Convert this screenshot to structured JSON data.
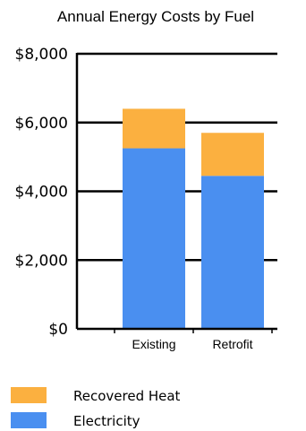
{
  "chart_data": {
    "type": "bar",
    "stacked": true,
    "title": "Annual Energy Costs by Fuel",
    "categories": [
      "Existing",
      "Retrofit"
    ],
    "series": [
      {
        "name": "Electricity",
        "values": [
          5250,
          4450
        ],
        "color": "#4a8ff0"
      },
      {
        "name": "Recovered Heat",
        "values": [
          1150,
          1250
        ],
        "color": "#fbb040"
      }
    ],
    "ylim": [
      0,
      8000
    ],
    "yticks": [
      0,
      2000,
      4000,
      6000,
      8000
    ],
    "ytick_labels": [
      "$0",
      "$2,000",
      "$4,000",
      "$6,000",
      "$8,000"
    ],
    "grid": true,
    "legend_position": "bottom-left",
    "legend_order": [
      "Recovered Heat",
      "Electricity"
    ]
  }
}
